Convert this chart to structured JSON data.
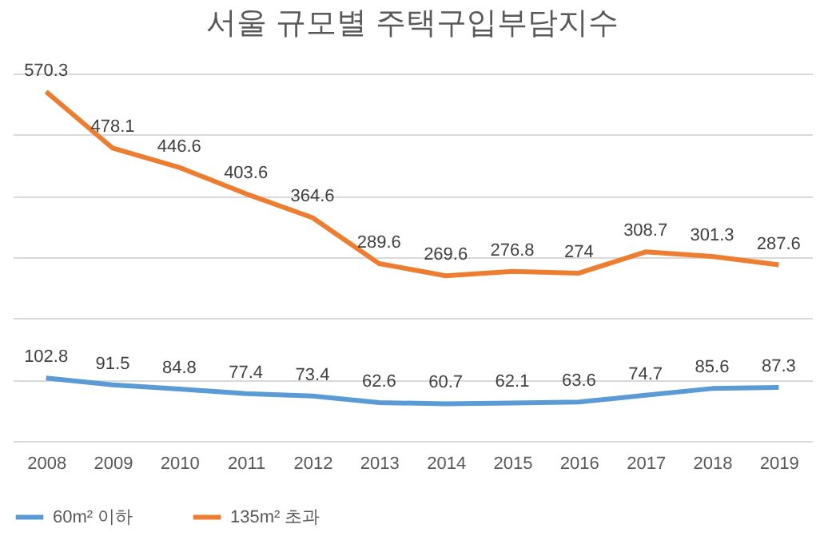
{
  "chart_data": {
    "type": "line",
    "title": "서울 규모별 주택구입부담지수",
    "categories": [
      "2008",
      "2009",
      "2010",
      "2011",
      "2012",
      "2013",
      "2014",
      "2015",
      "2016",
      "2017",
      "2018",
      "2019"
    ],
    "series": [
      {
        "name": "60m² 이하",
        "color": "#5b9bd5",
        "values": [
          102.8,
          91.5,
          84.8,
          77.4,
          73.4,
          62.6,
          60.7,
          62.1,
          63.6,
          74.7,
          85.6,
          87.3
        ]
      },
      {
        "name": "135m² 초과",
        "color": "#ed7d31",
        "values": [
          570.3,
          478.1,
          446.6,
          403.6,
          364.6,
          289.6,
          269.6,
          276.8,
          274,
          308.7,
          301.3,
          287.6
        ]
      }
    ],
    "ylim": [
      0,
      600
    ],
    "yticks": [
      {
        "value": 0,
        "label": null
      },
      {
        "value": 100,
        "label": null
      },
      {
        "value": 200,
        "label": null
      },
      {
        "value": 300,
        "label": null
      },
      {
        "value": 400,
        "label": null
      },
      {
        "value": 500,
        "label": null
      },
      {
        "value": 600,
        "label": null
      }
    ],
    "tick_labels": "x",
    "grid": "y",
    "legend": "bottom",
    "data_labels": true,
    "marker": "none",
    "line_style": "solid"
  }
}
